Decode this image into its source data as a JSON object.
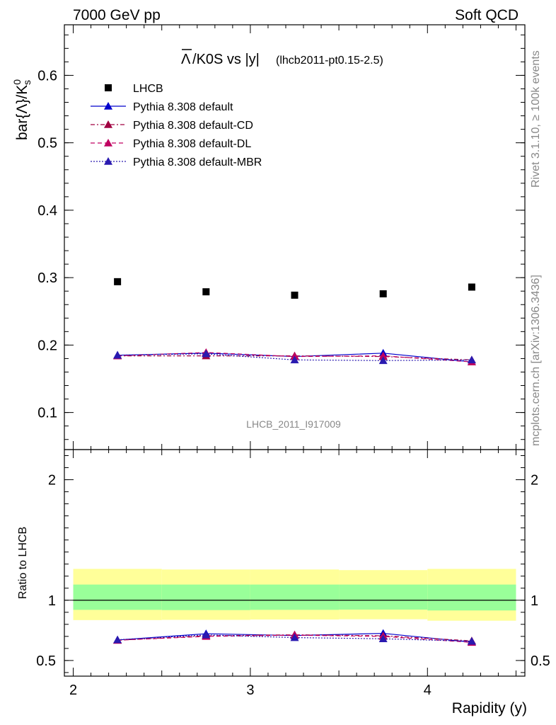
{
  "header": {
    "left": "7000 GeV pp",
    "right": "Soft QCD"
  },
  "side_labels": {
    "rivet": "Rivet 3.1.10, ≥ 100k events",
    "mcplots": "mcplots.cern.ch [arXiv:1306.3436]"
  },
  "watermark": "LHCB_2011_I917009",
  "colors": {
    "data": "#000000",
    "default": "#0000cc",
    "default_cd": "#a00040",
    "default_dl": "#c00060",
    "default_mbr": "#2a1ab0",
    "band_outer": "#ffff99",
    "band_inner": "#99ff99"
  },
  "chart_data": [
    {
      "type": "scatter",
      "title_main": "K0S vs |y|",
      "title_symbol": "Λ",
      "title_sub": "(lhcb2011-pt0.15-2.5)",
      "ylabel": "bar{Λ}/K",
      "ylabel_sup": "0",
      "ylabel_sub": "s",
      "xlim": [
        1.95,
        4.55
      ],
      "ylim": [
        0.045,
        0.675
      ],
      "yticks": [
        0.1,
        0.2,
        0.3,
        0.4,
        0.5,
        0.6
      ],
      "ytick_labels": [
        "0.1",
        "0.2",
        "0.3",
        "0.4",
        "0.5",
        "0.6"
      ],
      "x": [
        2.25,
        2.75,
        3.25,
        3.75,
        4.25
      ],
      "data": {
        "name": "LHCB",
        "values": [
          0.294,
          0.279,
          0.274,
          0.276,
          0.286
        ]
      },
      "series": [
        {
          "name": "Pythia 8.308 default",
          "style": "solid",
          "color_key": "default",
          "values": [
            0.185,
            0.188,
            0.183,
            0.188,
            0.175
          ]
        },
        {
          "name": "Pythia 8.308 default-CD",
          "style": "dashdot",
          "color_key": "default_cd",
          "values": [
            0.184,
            0.184,
            0.184,
            0.183,
            0.178
          ]
        },
        {
          "name": "Pythia 8.308 default-DL",
          "style": "dashed",
          "color_key": "default_dl",
          "values": [
            0.184,
            0.189,
            0.183,
            0.184,
            0.175
          ]
        },
        {
          "name": "Pythia 8.308 default-MBR",
          "style": "dotted",
          "color_key": "default_mbr",
          "values": [
            0.185,
            0.187,
            0.178,
            0.177,
            0.178
          ]
        }
      ],
      "legend_position": "top-left"
    },
    {
      "type": "line",
      "ylabel": "Ratio to LHCB",
      "xlabel": "Rapidity (y)",
      "xlim": [
        1.95,
        4.55
      ],
      "ylim": [
        0.37,
        2.25
      ],
      "yticks": [
        0.5,
        1,
        2
      ],
      "ytick_labels": [
        "0.5",
        "1",
        "2"
      ],
      "xticks": [
        2,
        3,
        4
      ],
      "xtick_labels": [
        "2",
        "3",
        "4"
      ],
      "x": [
        2.25,
        2.75,
        3.25,
        3.75,
        4.25
      ],
      "bands": {
        "edges": [
          2.0,
          2.5,
          3.0,
          3.5,
          4.0,
          4.5
        ],
        "outer_lo": [
          0.835,
          0.837,
          0.84,
          0.842,
          0.83
        ],
        "outer_hi": [
          1.26,
          1.255,
          1.255,
          1.25,
          1.26
        ],
        "inner_lo": [
          0.92,
          0.918,
          0.92,
          0.922,
          0.915
        ],
        "inner_hi": [
          1.13,
          1.13,
          1.13,
          1.13,
          1.13
        ]
      },
      "series": [
        {
          "name": "Pythia 8.308 default",
          "style": "solid",
          "color_key": "default",
          "values": [
            0.67,
            0.722,
            0.707,
            0.725,
            0.652
          ]
        },
        {
          "name": "Pythia 8.308 default-CD",
          "style": "dashdot",
          "color_key": "default_cd",
          "values": [
            0.668,
            0.705,
            0.713,
            0.705,
            0.663
          ]
        },
        {
          "name": "Pythia 8.308 default-DL",
          "style": "dashed",
          "color_key": "default_dl",
          "values": [
            0.668,
            0.7,
            0.71,
            0.7,
            0.65
          ]
        },
        {
          "name": "Pythia 8.308 default-MBR",
          "style": "dotted",
          "color_key": "default_mbr",
          "values": [
            0.672,
            0.712,
            0.69,
            0.68,
            0.66
          ]
        }
      ]
    }
  ]
}
